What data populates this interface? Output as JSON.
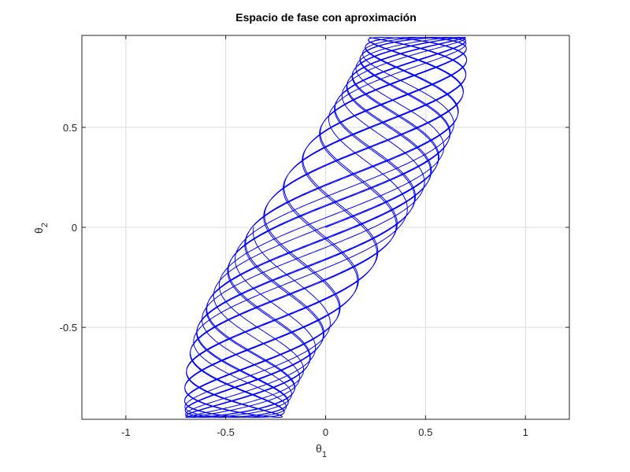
{
  "chart_data": {
    "type": "line",
    "title": "Espacio de fase con aproximación",
    "xlabel": "θ",
    "xlabel_sub": "1",
    "ylabel": "θ",
    "ylabel_sub": "2",
    "xlim": [
      -1.22,
      1.22
    ],
    "ylim": [
      -0.96,
      0.96
    ],
    "x_ticks": [
      -1,
      -0.5,
      0,
      0.5,
      1
    ],
    "x_tick_labels": [
      "-1",
      "-0.5",
      "0",
      "0.5",
      "1"
    ],
    "y_ticks": [
      -0.5,
      0,
      0.5
    ],
    "y_tick_labels": [
      "-0.5",
      "0",
      "0.5"
    ],
    "grid": true,
    "box": true,
    "colors": {
      "series": "#0000ff",
      "grid": "#dcdcdc",
      "axes": "#262626"
    },
    "series": [
      {
        "curve": "lissajous-band",
        "x_amplitude": 0.74,
        "y_amplitude": 0.95,
        "frequency_ratio": 1.0,
        "phase_modulation_cycles": 11,
        "x_range": [
          -0.74,
          0.74
        ],
        "y_range": [
          -0.95,
          0.95
        ]
      }
    ]
  }
}
